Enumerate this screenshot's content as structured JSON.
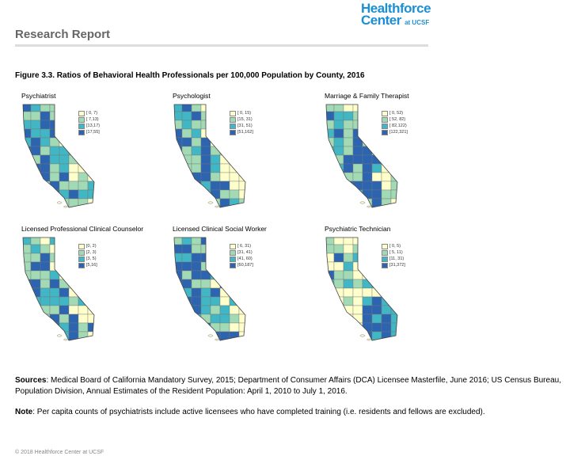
{
  "logo": {
    "line1": "Healthforce",
    "line2": "Center",
    "suffix": "at UCSF"
  },
  "header": {
    "title": "Research Report"
  },
  "figure": {
    "title": "Figure 3.3. Ratios of Behavioral Health Professionals per 100,000 Population by County, 2016",
    "legend_colors": [
      "#ffffcc",
      "#a1dab4",
      "#41b6c4",
      "#2c64b0"
    ],
    "maps": [
      {
        "title": "Psychiatrist",
        "legend": [
          "[ 0, 7)",
          "[ 7,13)",
          "[13,17)",
          "[17,55]"
        ]
      },
      {
        "title": "Psychologist",
        "legend": [
          "[ 0, 15)",
          "[15, 31)",
          "[31, 51)",
          "[51,162]"
        ]
      },
      {
        "title": "Marriage & Family Therapist",
        "legend": [
          "[ 0, 52)",
          "[ 52, 82)",
          "[ 82,122)",
          "[122,321]"
        ]
      },
      {
        "title": "Licensed Professional Clinical Counselor",
        "legend": [
          "[0, 2)",
          "[2, 3)",
          "[3, 5)",
          "[5,16]"
        ]
      },
      {
        "title": "Licensed Clinical Social Worker",
        "legend": [
          "[ 6, 31)",
          "[31, 41)",
          "[41, 60)",
          "[60,187]"
        ]
      },
      {
        "title": "Psychiatric Technician",
        "legend": [
          "[ 0, 5)",
          "[ 5, 11)",
          "[11, 31)",
          "[31,372]"
        ]
      }
    ]
  },
  "sources": {
    "label": "Sources",
    "text": ": Medical Board of California Mandatory Survey, 2015; Department of Consumer Affairs (DCA) Licensee Masterfile, June 2016; US Census Bureau, Population Division, Annual Estimates of the Resident Population: April 1, 2010 to July 1, 2016."
  },
  "note": {
    "label": "Note",
    "text": ": Per capita counts of psychiatrists include active licensees who have completed training (i.e. residents and fellows are excluded)."
  },
  "footer": {
    "text": "© 2018 Healthforce Center at UCSF"
  }
}
